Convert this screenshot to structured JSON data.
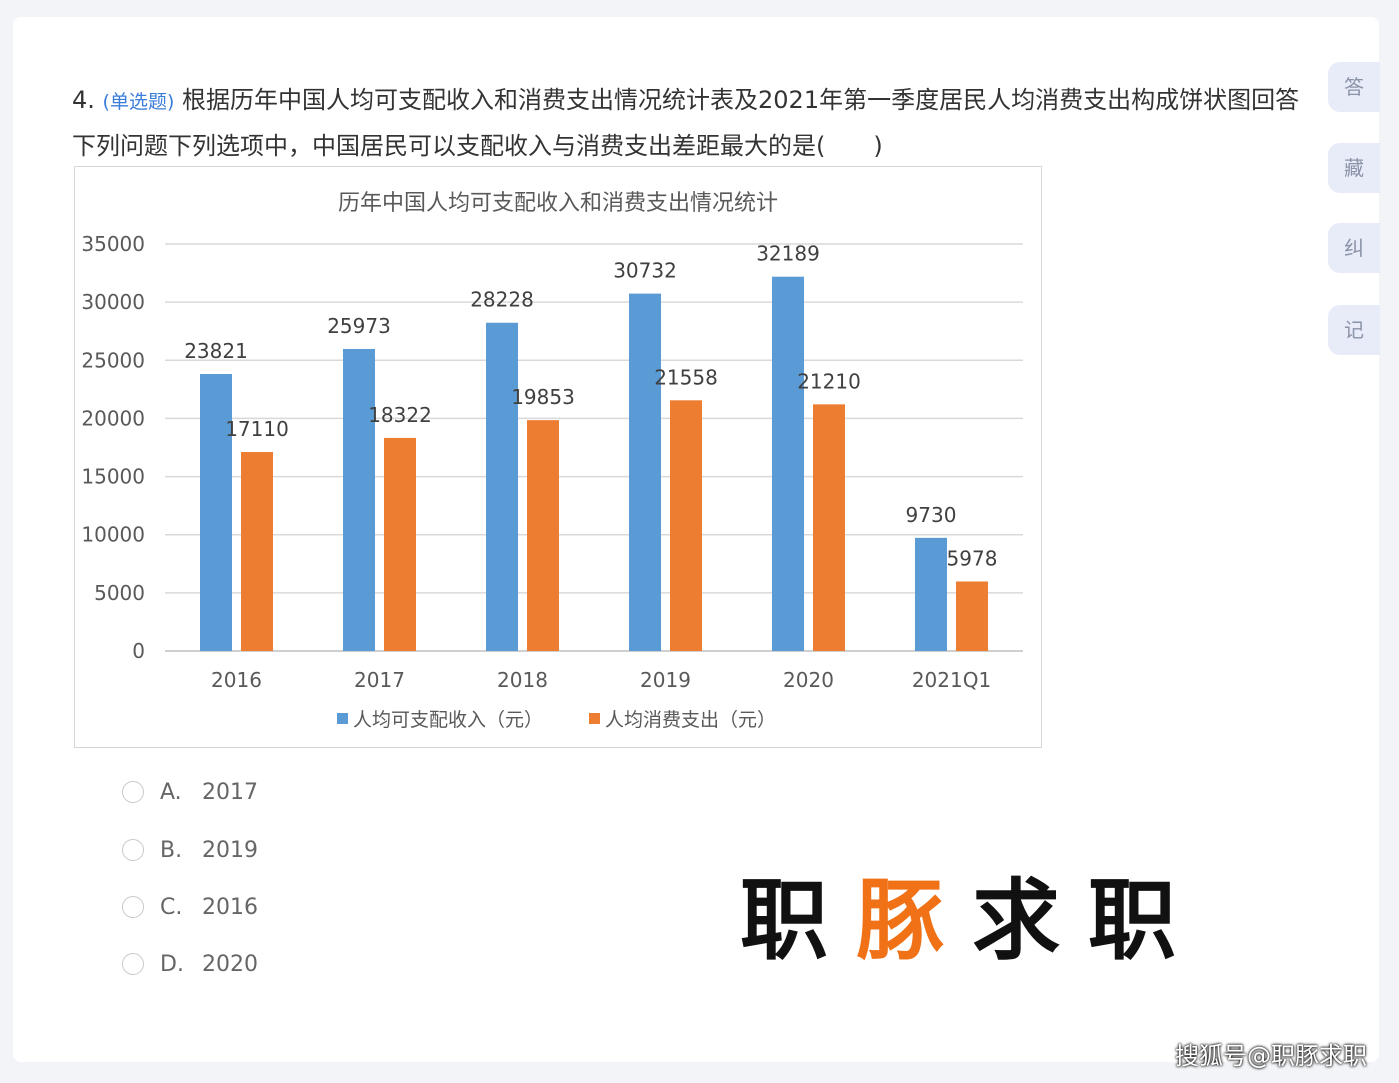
{
  "question": {
    "number": "4.",
    "type": "(单选题)",
    "text": "根据历年中国人均可支配收入和消费支出情况统计表及2021年第一季度居民人均消费支出构成饼状图回答下列问题下列选项中，中国居民可以支配收入与消费支出差距最大的是(　　)"
  },
  "side_buttons": [
    "答",
    "藏",
    "纠",
    "记"
  ],
  "options": [
    {
      "letter": "A.",
      "value": "2017"
    },
    {
      "letter": "B.",
      "value": "2019"
    },
    {
      "letter": "C.",
      "value": "2016"
    },
    {
      "letter": "D.",
      "value": "2020"
    }
  ],
  "logo": {
    "part1": "职",
    "part2": "豚",
    "part3": "求职"
  },
  "watermark": "搜狐号@职豚求职",
  "colors": {
    "income": "#5b9bd5",
    "expense": "#ed7d31",
    "qtype": "#3b7ddb",
    "logo_accent": "#f07116"
  },
  "chart_data": {
    "type": "bar",
    "title": "历年中国人均可支配收入和消费支出情况统计",
    "categories": [
      "2016",
      "2017",
      "2018",
      "2019",
      "2020",
      "2021Q1"
    ],
    "series": [
      {
        "name": "人均可支配收入（元）",
        "values": [
          23821,
          25973,
          28228,
          30732,
          32189,
          9730
        ]
      },
      {
        "name": "人均消费支出（元）",
        "values": [
          17110,
          18322,
          19853,
          21558,
          21210,
          5978
        ]
      }
    ],
    "y_ticks": [
      "0",
      "5000",
      "10000",
      "15000",
      "20000",
      "25000",
      "30000",
      "35000"
    ],
    "ylim": [
      0,
      35000
    ],
    "grid": true,
    "legend": "bottom"
  }
}
